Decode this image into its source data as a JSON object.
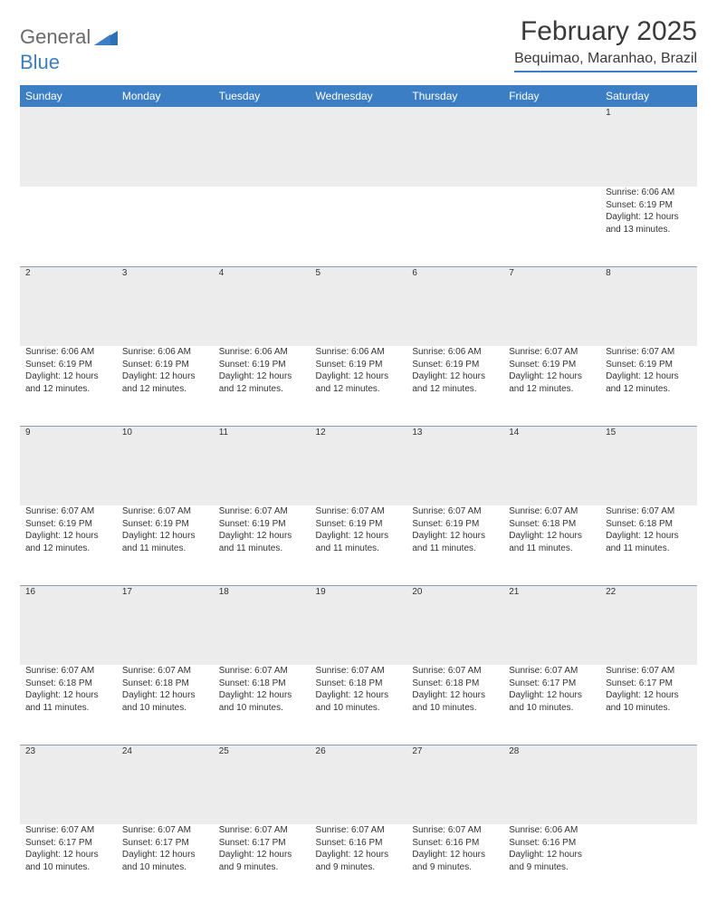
{
  "brand": {
    "part1": "General",
    "part2": "Blue"
  },
  "title": "February 2025",
  "location": "Bequimao, Maranhao, Brazil",
  "colors": {
    "header_bg": "#3b7ec4",
    "header_text": "#ffffff",
    "daynum_bg": "#ececec",
    "border": "#8a9db0",
    "text": "#333333"
  },
  "day_names": [
    "Sunday",
    "Monday",
    "Tuesday",
    "Wednesday",
    "Thursday",
    "Friday",
    "Saturday"
  ],
  "weeks": [
    {
      "nums": [
        "",
        "",
        "",
        "",
        "",
        "",
        "1"
      ],
      "cells": [
        null,
        null,
        null,
        null,
        null,
        null,
        {
          "sunrise": "Sunrise: 6:06 AM",
          "sunset": "Sunset: 6:19 PM",
          "day1": "Daylight: 12 hours",
          "day2": "and 13 minutes."
        }
      ]
    },
    {
      "nums": [
        "2",
        "3",
        "4",
        "5",
        "6",
        "7",
        "8"
      ],
      "cells": [
        {
          "sunrise": "Sunrise: 6:06 AM",
          "sunset": "Sunset: 6:19 PM",
          "day1": "Daylight: 12 hours",
          "day2": "and 12 minutes."
        },
        {
          "sunrise": "Sunrise: 6:06 AM",
          "sunset": "Sunset: 6:19 PM",
          "day1": "Daylight: 12 hours",
          "day2": "and 12 minutes."
        },
        {
          "sunrise": "Sunrise: 6:06 AM",
          "sunset": "Sunset: 6:19 PM",
          "day1": "Daylight: 12 hours",
          "day2": "and 12 minutes."
        },
        {
          "sunrise": "Sunrise: 6:06 AM",
          "sunset": "Sunset: 6:19 PM",
          "day1": "Daylight: 12 hours",
          "day2": "and 12 minutes."
        },
        {
          "sunrise": "Sunrise: 6:06 AM",
          "sunset": "Sunset: 6:19 PM",
          "day1": "Daylight: 12 hours",
          "day2": "and 12 minutes."
        },
        {
          "sunrise": "Sunrise: 6:07 AM",
          "sunset": "Sunset: 6:19 PM",
          "day1": "Daylight: 12 hours",
          "day2": "and 12 minutes."
        },
        {
          "sunrise": "Sunrise: 6:07 AM",
          "sunset": "Sunset: 6:19 PM",
          "day1": "Daylight: 12 hours",
          "day2": "and 12 minutes."
        }
      ]
    },
    {
      "nums": [
        "9",
        "10",
        "11",
        "12",
        "13",
        "14",
        "15"
      ],
      "cells": [
        {
          "sunrise": "Sunrise: 6:07 AM",
          "sunset": "Sunset: 6:19 PM",
          "day1": "Daylight: 12 hours",
          "day2": "and 12 minutes."
        },
        {
          "sunrise": "Sunrise: 6:07 AM",
          "sunset": "Sunset: 6:19 PM",
          "day1": "Daylight: 12 hours",
          "day2": "and 11 minutes."
        },
        {
          "sunrise": "Sunrise: 6:07 AM",
          "sunset": "Sunset: 6:19 PM",
          "day1": "Daylight: 12 hours",
          "day2": "and 11 minutes."
        },
        {
          "sunrise": "Sunrise: 6:07 AM",
          "sunset": "Sunset: 6:19 PM",
          "day1": "Daylight: 12 hours",
          "day2": "and 11 minutes."
        },
        {
          "sunrise": "Sunrise: 6:07 AM",
          "sunset": "Sunset: 6:19 PM",
          "day1": "Daylight: 12 hours",
          "day2": "and 11 minutes."
        },
        {
          "sunrise": "Sunrise: 6:07 AM",
          "sunset": "Sunset: 6:18 PM",
          "day1": "Daylight: 12 hours",
          "day2": "and 11 minutes."
        },
        {
          "sunrise": "Sunrise: 6:07 AM",
          "sunset": "Sunset: 6:18 PM",
          "day1": "Daylight: 12 hours",
          "day2": "and 11 minutes."
        }
      ]
    },
    {
      "nums": [
        "16",
        "17",
        "18",
        "19",
        "20",
        "21",
        "22"
      ],
      "cells": [
        {
          "sunrise": "Sunrise: 6:07 AM",
          "sunset": "Sunset: 6:18 PM",
          "day1": "Daylight: 12 hours",
          "day2": "and 11 minutes."
        },
        {
          "sunrise": "Sunrise: 6:07 AM",
          "sunset": "Sunset: 6:18 PM",
          "day1": "Daylight: 12 hours",
          "day2": "and 10 minutes."
        },
        {
          "sunrise": "Sunrise: 6:07 AM",
          "sunset": "Sunset: 6:18 PM",
          "day1": "Daylight: 12 hours",
          "day2": "and 10 minutes."
        },
        {
          "sunrise": "Sunrise: 6:07 AM",
          "sunset": "Sunset: 6:18 PM",
          "day1": "Daylight: 12 hours",
          "day2": "and 10 minutes."
        },
        {
          "sunrise": "Sunrise: 6:07 AM",
          "sunset": "Sunset: 6:18 PM",
          "day1": "Daylight: 12 hours",
          "day2": "and 10 minutes."
        },
        {
          "sunrise": "Sunrise: 6:07 AM",
          "sunset": "Sunset: 6:17 PM",
          "day1": "Daylight: 12 hours",
          "day2": "and 10 minutes."
        },
        {
          "sunrise": "Sunrise: 6:07 AM",
          "sunset": "Sunset: 6:17 PM",
          "day1": "Daylight: 12 hours",
          "day2": "and 10 minutes."
        }
      ]
    },
    {
      "nums": [
        "23",
        "24",
        "25",
        "26",
        "27",
        "28",
        ""
      ],
      "cells": [
        {
          "sunrise": "Sunrise: 6:07 AM",
          "sunset": "Sunset: 6:17 PM",
          "day1": "Daylight: 12 hours",
          "day2": "and 10 minutes."
        },
        {
          "sunrise": "Sunrise: 6:07 AM",
          "sunset": "Sunset: 6:17 PM",
          "day1": "Daylight: 12 hours",
          "day2": "and 10 minutes."
        },
        {
          "sunrise": "Sunrise: 6:07 AM",
          "sunset": "Sunset: 6:17 PM",
          "day1": "Daylight: 12 hours",
          "day2": "and 9 minutes."
        },
        {
          "sunrise": "Sunrise: 6:07 AM",
          "sunset": "Sunset: 6:16 PM",
          "day1": "Daylight: 12 hours",
          "day2": "and 9 minutes."
        },
        {
          "sunrise": "Sunrise: 6:07 AM",
          "sunset": "Sunset: 6:16 PM",
          "day1": "Daylight: 12 hours",
          "day2": "and 9 minutes."
        },
        {
          "sunrise": "Sunrise: 6:06 AM",
          "sunset": "Sunset: 6:16 PM",
          "day1": "Daylight: 12 hours",
          "day2": "and 9 minutes."
        },
        null
      ]
    }
  ]
}
